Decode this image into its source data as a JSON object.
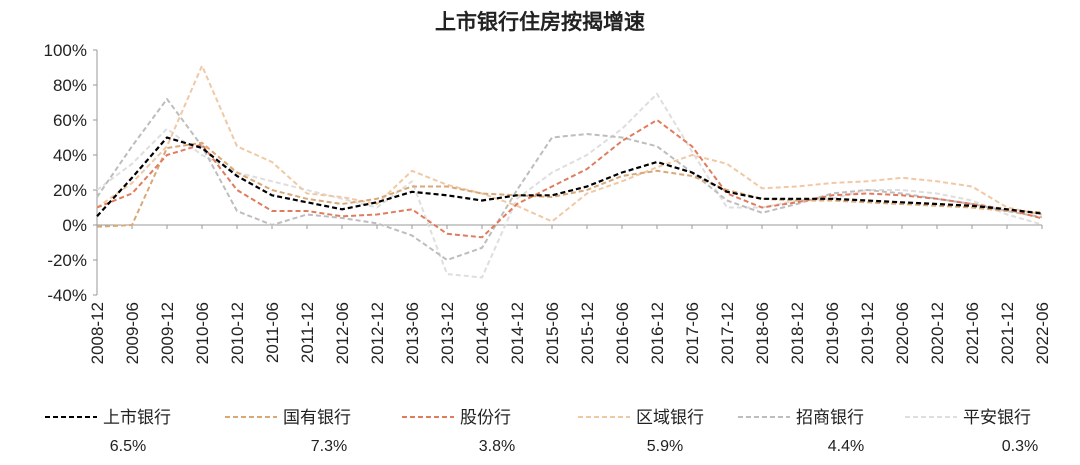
{
  "chart_data": {
    "type": "line",
    "title": "上市银行住房按揭增速",
    "xlabel": "",
    "ylabel": "",
    "ylim": [
      -40,
      100
    ],
    "yticks": [
      "100%",
      "80%",
      "60%",
      "40%",
      "20%",
      "0%",
      "-20%",
      "-40%"
    ],
    "ytick_values": [
      100,
      80,
      60,
      40,
      20,
      0,
      -20,
      -40
    ],
    "categories": [
      "2008-12",
      "2009-06",
      "2009-12",
      "2010-06",
      "2010-12",
      "2011-06",
      "2011-12",
      "2012-06",
      "2012-12",
      "2013-06",
      "2013-12",
      "2014-06",
      "2014-12",
      "2015-06",
      "2015-12",
      "2016-06",
      "2016-12",
      "2017-06",
      "2017-12",
      "2018-06",
      "2018-12",
      "2019-06",
      "2019-12",
      "2020-06",
      "2020-12",
      "2021-06",
      "2021-12",
      "2022-06"
    ],
    "grid": false,
    "legend_position": "bottom",
    "series": [
      {
        "name": "上市银行",
        "end_value_label": "6.5%",
        "color": "#000000",
        "values": [
          5,
          27,
          50,
          44,
          28,
          17,
          13,
          9,
          13,
          19,
          17,
          14,
          17,
          17,
          22,
          30,
          36,
          30,
          19,
          15,
          15,
          15,
          14,
          13,
          12,
          11,
          9,
          6.5
        ]
      },
      {
        "name": "国有银行",
        "end_value_label": "7.3%",
        "color": "#d9a877",
        "values": [
          -1,
          0,
          44,
          47,
          30,
          20,
          15,
          12,
          15,
          22,
          22,
          18,
          17,
          16,
          20,
          28,
          31,
          28,
          20,
          15,
          14,
          14,
          13,
          12,
          11,
          10,
          8,
          7.3
        ]
      },
      {
        "name": "股份行",
        "end_value_label": "3.8%",
        "color": "#e07c5e",
        "values": [
          10,
          18,
          40,
          46,
          20,
          8,
          8,
          5,
          6,
          9,
          -5,
          -7,
          12,
          22,
          32,
          48,
          60,
          45,
          18,
          10,
          13,
          17,
          18,
          17,
          15,
          12,
          9,
          3.8
        ]
      },
      {
        "name": "区域银行",
        "end_value_label": "5.9%",
        "color": "#f0c9a4",
        "values": [
          10,
          24,
          45,
          91,
          45,
          36,
          18,
          16,
          12,
          31,
          23,
          18,
          11,
          2,
          18,
          25,
          33,
          40,
          35,
          21,
          22,
          24,
          25,
          27,
          25,
          22,
          10,
          5.9
        ]
      },
      {
        "name": "招商银行",
        "end_value_label": "4.4%",
        "color": "#bdbdbd",
        "values": [
          16,
          45,
          72,
          45,
          8,
          0,
          6,
          4,
          1,
          -6,
          -20,
          -13,
          20,
          50,
          52,
          50,
          45,
          30,
          14,
          7,
          12,
          18,
          20,
          18,
          15,
          12,
          8,
          4.4
        ]
      },
      {
        "name": "平安银行",
        "end_value_label": "0.3%",
        "color": "#dedede",
        "values": [
          20,
          35,
          55,
          40,
          30,
          25,
          20,
          15,
          10,
          25,
          -28,
          -30,
          15,
          30,
          40,
          55,
          75,
          42,
          10,
          10,
          14,
          15,
          20,
          20,
          18,
          14,
          6,
          0.3
        ]
      }
    ]
  }
}
